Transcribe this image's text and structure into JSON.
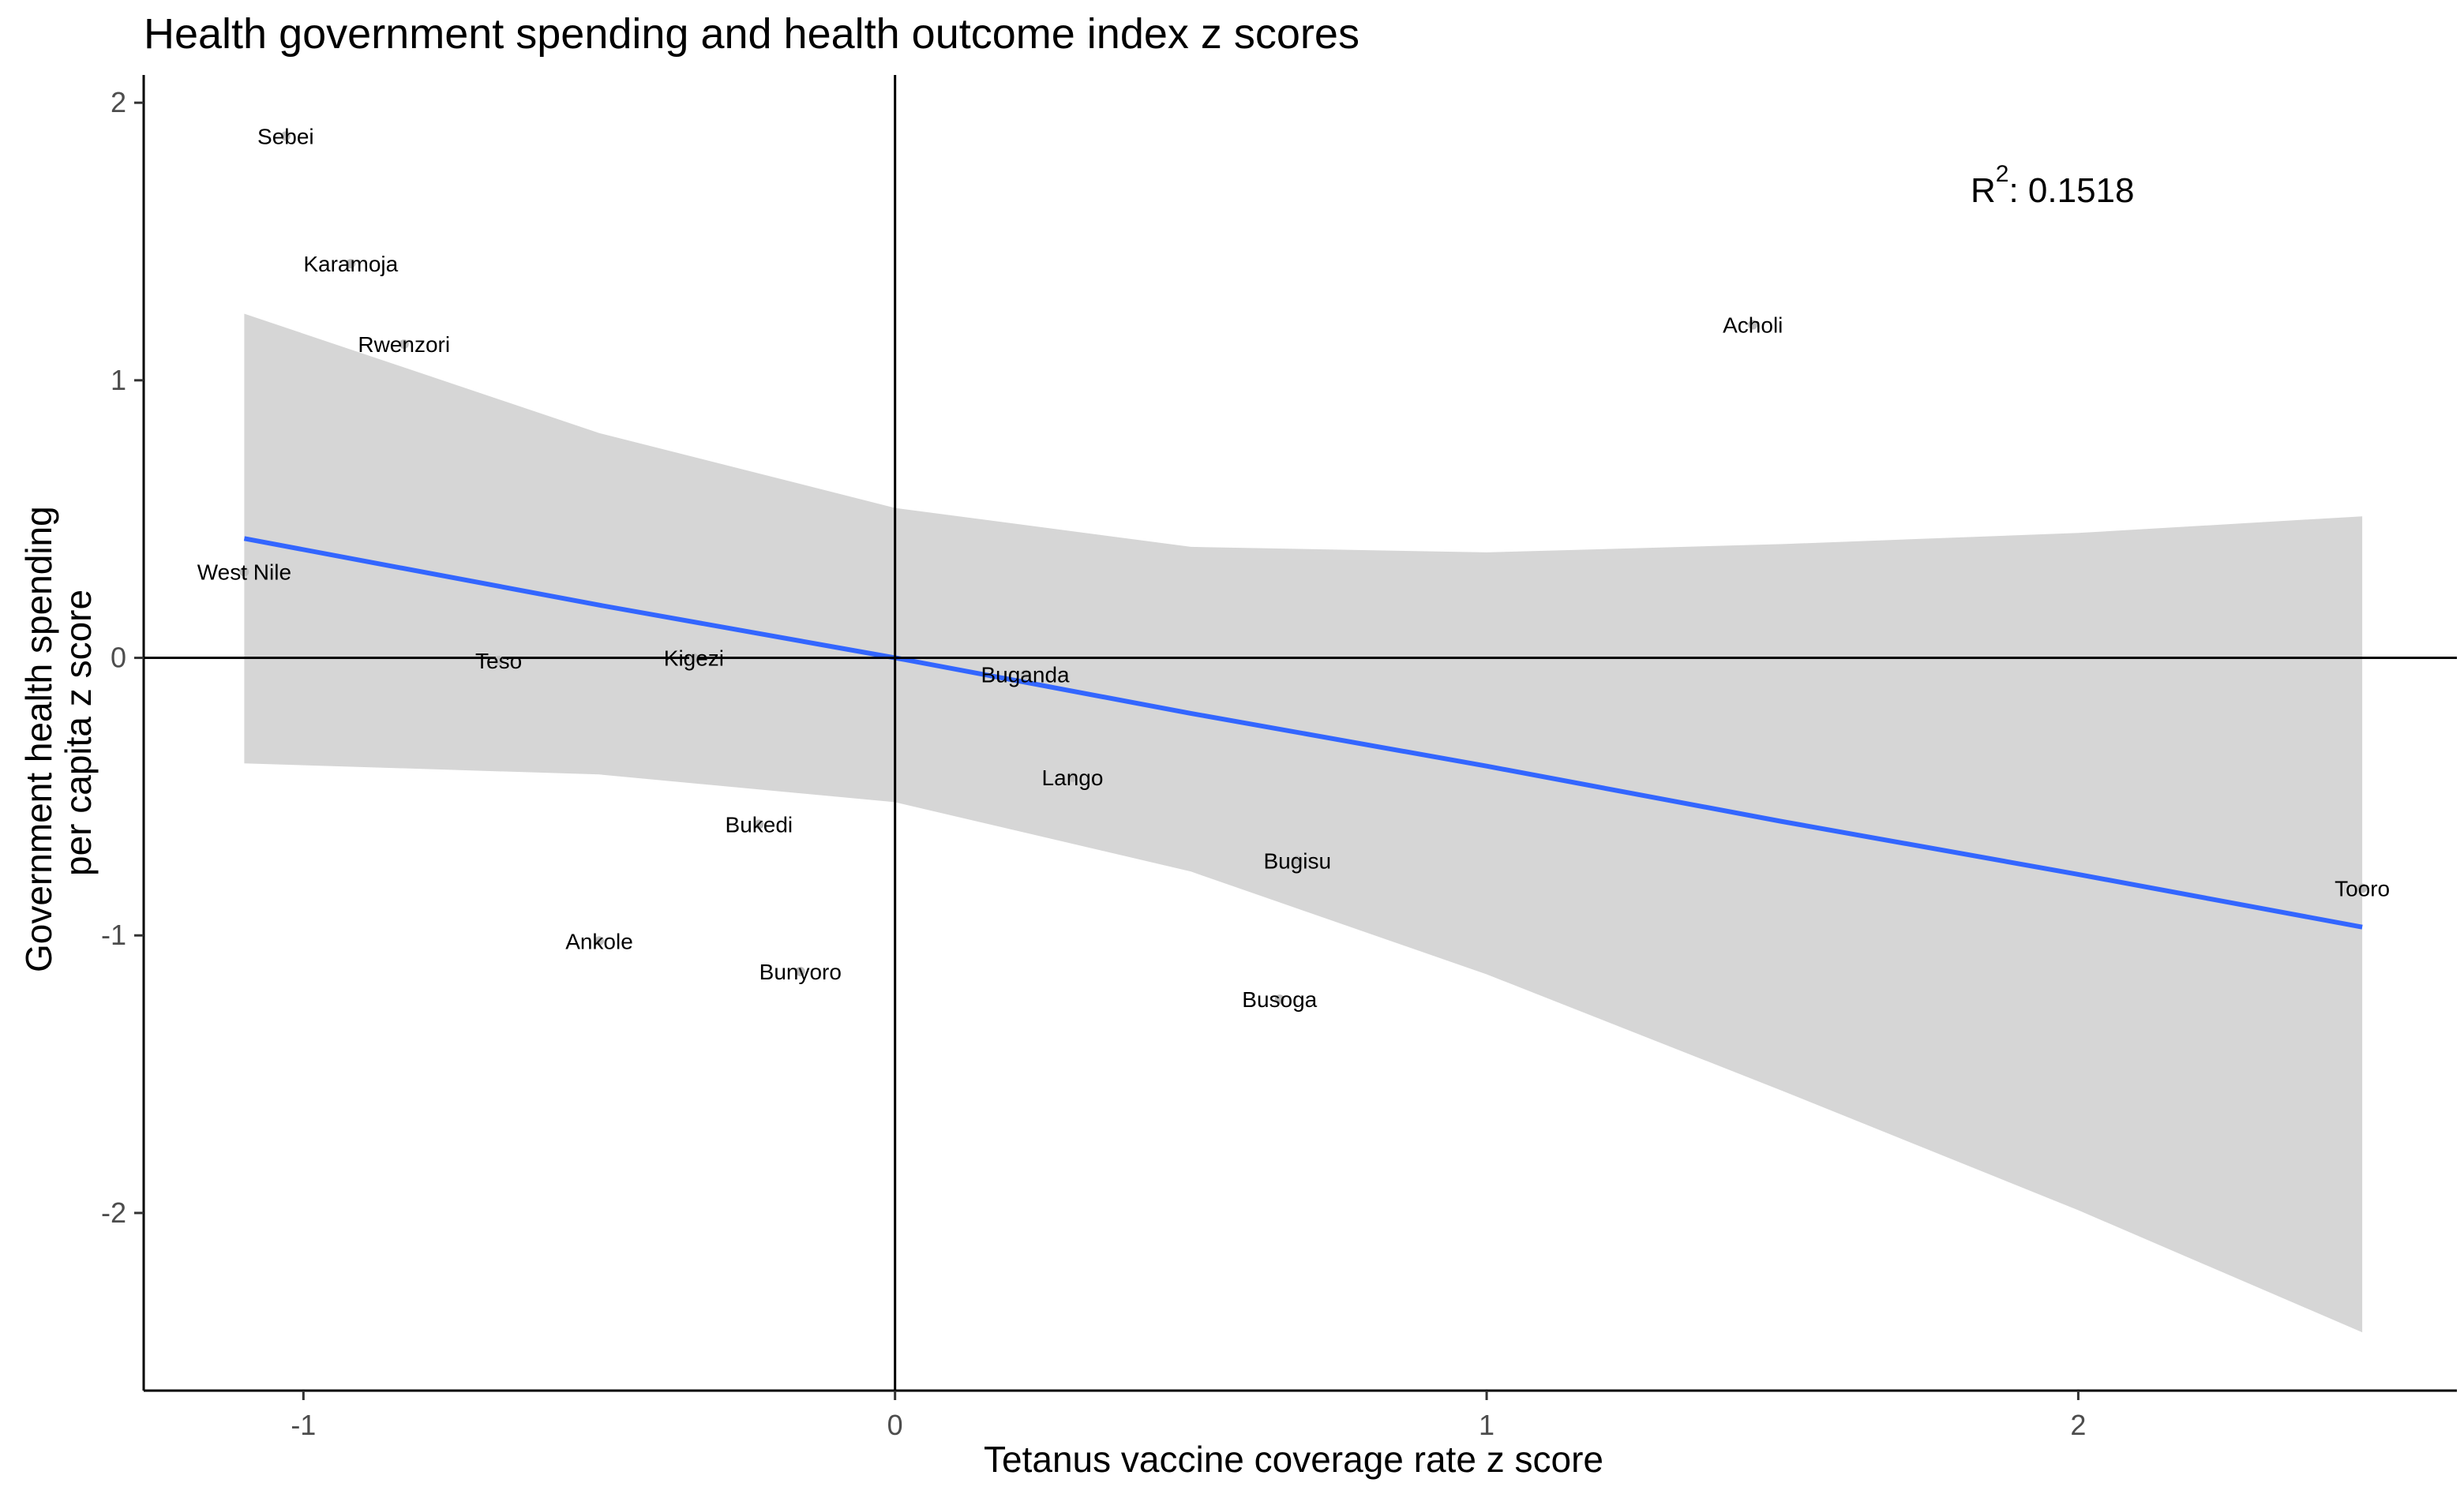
{
  "chart_data": {
    "type": "scatter",
    "title": "Health government spending and health outcome index z scores",
    "xlabel": "Tetanus vaccine coverage rate z score",
    "ylabel_lines": [
      "Government health spending",
      "per capita z score"
    ],
    "xlim": [
      -1.27,
      2.64
    ],
    "ylim": [
      -2.64,
      2.1
    ],
    "x_ticks": [
      -1,
      0,
      1,
      2
    ],
    "x_tick_labels": [
      "-1",
      "0",
      "1",
      "2"
    ],
    "y_ticks": [
      -2,
      -1,
      0,
      1,
      2
    ],
    "y_tick_labels": [
      "-2",
      "-1",
      "0",
      "1",
      "2"
    ],
    "annotation": {
      "r2_label": "R",
      "r2_sup": "2",
      "r2_value": ": 0.1518"
    },
    "points": [
      {
        "label": "Sebei",
        "x": -1.03,
        "y": 1.88
      },
      {
        "label": "Karamoja",
        "x": -0.92,
        "y": 1.42
      },
      {
        "label": "Rwenzori",
        "x": -0.83,
        "y": 1.13
      },
      {
        "label": "Acholi",
        "x": 1.45,
        "y": 1.2
      },
      {
        "label": "West Nile",
        "x": -1.1,
        "y": 0.31
      },
      {
        "label": "Teso",
        "x": -0.67,
        "y": -0.01
      },
      {
        "label": "Kigezi",
        "x": -0.34,
        "y": 0.0
      },
      {
        "label": "Buganda",
        "x": 0.22,
        "y": -0.06
      },
      {
        "label": "Lango",
        "x": 0.3,
        "y": -0.43
      },
      {
        "label": "Bukedi",
        "x": -0.23,
        "y": -0.6
      },
      {
        "label": "Bugisu",
        "x": 0.68,
        "y": -0.73
      },
      {
        "label": "Tooro",
        "x": 2.48,
        "y": -0.83
      },
      {
        "label": "Ankole",
        "x": -0.5,
        "y": -1.02
      },
      {
        "label": "Bunyoro",
        "x": -0.16,
        "y": -1.13
      },
      {
        "label": "Busoga",
        "x": 0.65,
        "y": -1.23
      }
    ],
    "regression": {
      "x": [
        -1.1,
        -0.5,
        0,
        0.5,
        1.0,
        1.5,
        2.0,
        2.48
      ],
      "y": [
        0.43,
        0.19,
        0.0,
        -0.2,
        -0.39,
        -0.59,
        -0.78,
        -0.97
      ],
      "ci_lower": [
        -0.38,
        -0.42,
        -0.52,
        -0.77,
        -1.14,
        -1.56,
        -1.99,
        -2.43
      ],
      "ci_upper": [
        1.24,
        0.81,
        0.54,
        0.4,
        0.38,
        0.41,
        0.45,
        0.51
      ],
      "line_color": "#3366ff",
      "band_color": "#d6d6d6"
    },
    "reference_lines": {
      "x": 0,
      "y": 0
    },
    "point_color": "#bfbfbf",
    "grid": false
  }
}
